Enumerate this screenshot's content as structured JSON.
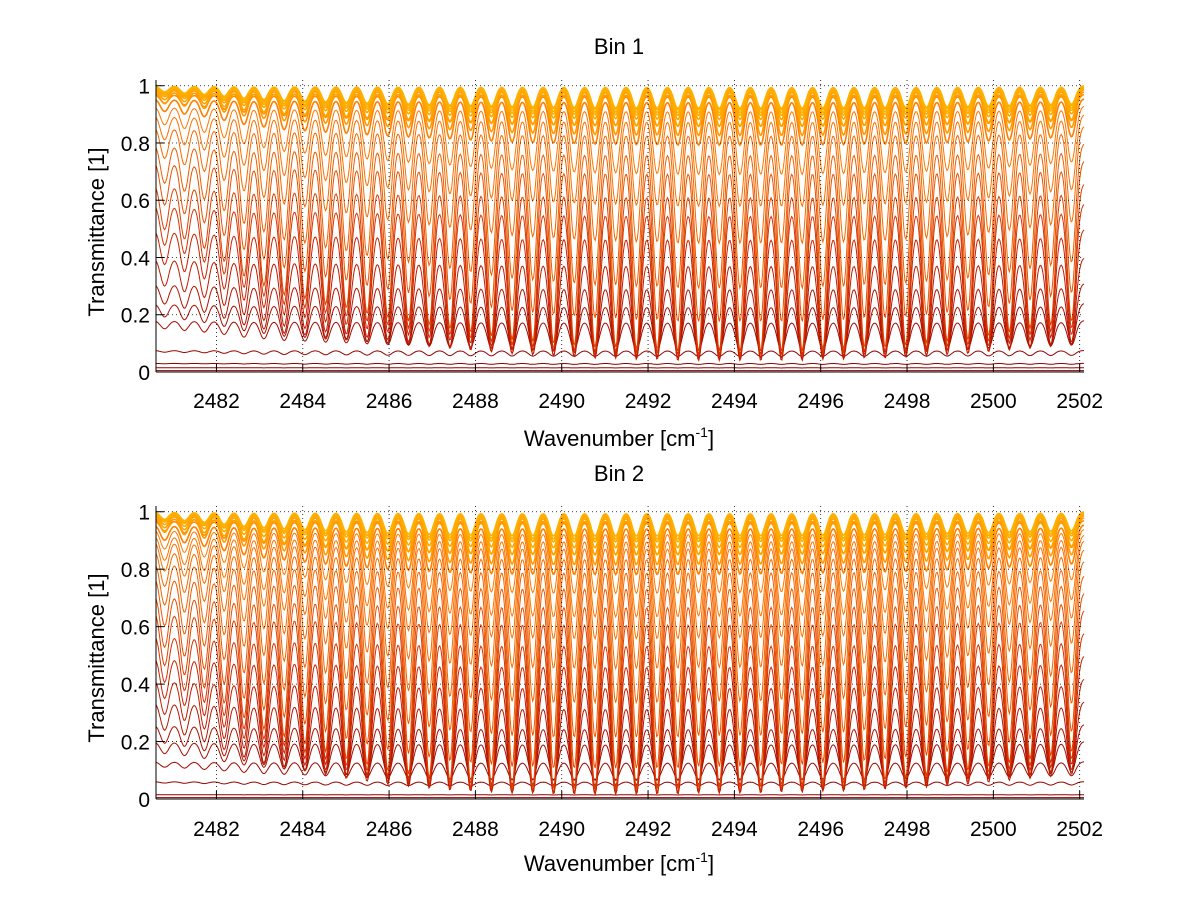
{
  "chart_data": [
    {
      "type": "line",
      "title": "Bin 1",
      "xlabel": "Wavenumber [cm",
      "xlabel_sup": "-1",
      "xlabel_close": "]",
      "ylabel": "Transmittance [1]",
      "xlim": [
        2480.6,
        2502.1
      ],
      "ylim": [
        0,
        1.02
      ],
      "xticks": [
        2482,
        2484,
        2486,
        2488,
        2490,
        2492,
        2494,
        2496,
        2498,
        2500,
        2502
      ],
      "yticks": [
        0,
        0.2,
        0.4,
        0.6,
        0.8,
        1
      ],
      "ytick_labels": [
        "0",
        "0.2",
        "0.4",
        "0.6",
        "0.8",
        "1"
      ],
      "grid": true,
      "line_spacing": 0.48,
      "series_baselines": [
        0.0,
        0.005,
        0.015,
        0.03,
        0.075,
        0.18,
        0.24,
        0.31,
        0.4,
        0.5,
        0.59,
        0.66,
        0.74,
        0.8,
        0.86,
        0.9,
        0.93,
        0.955,
        0.97,
        0.98,
        0.987,
        0.992,
        0.995,
        0.997,
        0.999,
        1.0
      ],
      "line_positions": [
        2480.8,
        2481.26,
        2481.72,
        2482.18,
        2482.64,
        2483.1,
        2483.57,
        2484.05,
        2484.53,
        2485.01,
        2485.49,
        2485.97,
        2486.45,
        2486.93,
        2487.41,
        2487.89,
        2488.37,
        2488.85,
        2489.33,
        2489.81,
        2490.29,
        2490.77,
        2491.25,
        2491.73,
        2492.21,
        2492.69,
        2493.17,
        2493.65,
        2494.13,
        2494.61,
        2495.09,
        2495.57,
        2496.05,
        2496.53,
        2497.01,
        2497.49,
        2497.97,
        2498.45,
        2498.93,
        2499.41,
        2499.89,
        2500.37,
        2500.85,
        2501.33,
        2501.81
      ],
      "line_strengths": [
        0.25,
        0.3,
        0.35,
        0.42,
        0.5,
        0.55,
        0.6,
        0.62,
        0.65,
        0.67,
        0.7,
        0.72,
        0.74,
        0.76,
        0.78,
        0.8,
        0.82,
        0.84,
        0.85,
        0.86,
        0.87,
        0.88,
        0.88,
        0.89,
        0.89,
        0.9,
        0.9,
        0.9,
        0.9,
        0.9,
        0.9,
        0.9,
        0.89,
        0.89,
        0.88,
        0.88,
        0.87,
        0.86,
        0.85,
        0.84,
        0.82,
        0.8,
        0.78,
        0.76,
        0.74
      ]
    },
    {
      "type": "line",
      "title": "Bin 2",
      "xlabel": "Wavenumber [cm",
      "xlabel_sup": "-1",
      "xlabel_close": "]",
      "ylabel": "Transmittance [1]",
      "xlim": [
        2480.6,
        2502.1
      ],
      "ylim": [
        0,
        1.02
      ],
      "xticks": [
        2482,
        2484,
        2486,
        2488,
        2490,
        2492,
        2494,
        2496,
        2498,
        2500,
        2502
      ],
      "yticks": [
        0,
        0.2,
        0.4,
        0.6,
        0.8,
        1
      ],
      "ytick_labels": [
        "0",
        "0.2",
        "0.4",
        "0.6",
        "0.8",
        "1"
      ],
      "grid": true,
      "line_spacing": 0.48,
      "series_baselines": [
        0.0,
        0.005,
        0.015,
        0.06,
        0.13,
        0.2,
        0.26,
        0.34,
        0.42,
        0.5,
        0.58,
        0.66,
        0.72,
        0.78,
        0.83,
        0.87,
        0.9,
        0.92,
        0.94,
        0.955,
        0.97,
        0.98,
        0.987,
        0.992,
        0.996,
        0.998,
        1.0
      ],
      "line_positions": [
        2480.8,
        2481.26,
        2481.72,
        2482.18,
        2482.64,
        2483.1,
        2483.57,
        2484.05,
        2484.53,
        2485.01,
        2485.49,
        2485.97,
        2486.45,
        2486.93,
        2487.41,
        2487.89,
        2488.37,
        2488.85,
        2489.33,
        2489.81,
        2490.29,
        2490.77,
        2491.25,
        2491.73,
        2492.21,
        2492.69,
        2493.17,
        2493.65,
        2494.13,
        2494.61,
        2495.09,
        2495.57,
        2496.05,
        2496.53,
        2497.01,
        2497.49,
        2497.97,
        2498.45,
        2498.93,
        2499.41,
        2499.89,
        2500.37,
        2500.85,
        2501.33,
        2501.81
      ],
      "line_strengths": [
        0.3,
        0.35,
        0.42,
        0.5,
        0.58,
        0.64,
        0.68,
        0.72,
        0.76,
        0.8,
        0.83,
        0.86,
        0.88,
        0.9,
        0.92,
        0.93,
        0.94,
        0.95,
        0.95,
        0.96,
        0.96,
        0.96,
        0.96,
        0.96,
        0.96,
        0.96,
        0.95,
        0.95,
        0.95,
        0.95,
        0.94,
        0.94,
        0.93,
        0.93,
        0.92,
        0.91,
        0.9,
        0.89,
        0.87,
        0.86,
        0.84,
        0.82,
        0.8,
        0.78,
        0.76
      ]
    }
  ],
  "colors": {
    "low_transmittance": "#8b0000",
    "mid_transmittance": "#cc2200",
    "high_transmittance": "#ff7a00",
    "top_transmittance": "#ffb000",
    "grid": "#000000",
    "axis": "#000000"
  }
}
